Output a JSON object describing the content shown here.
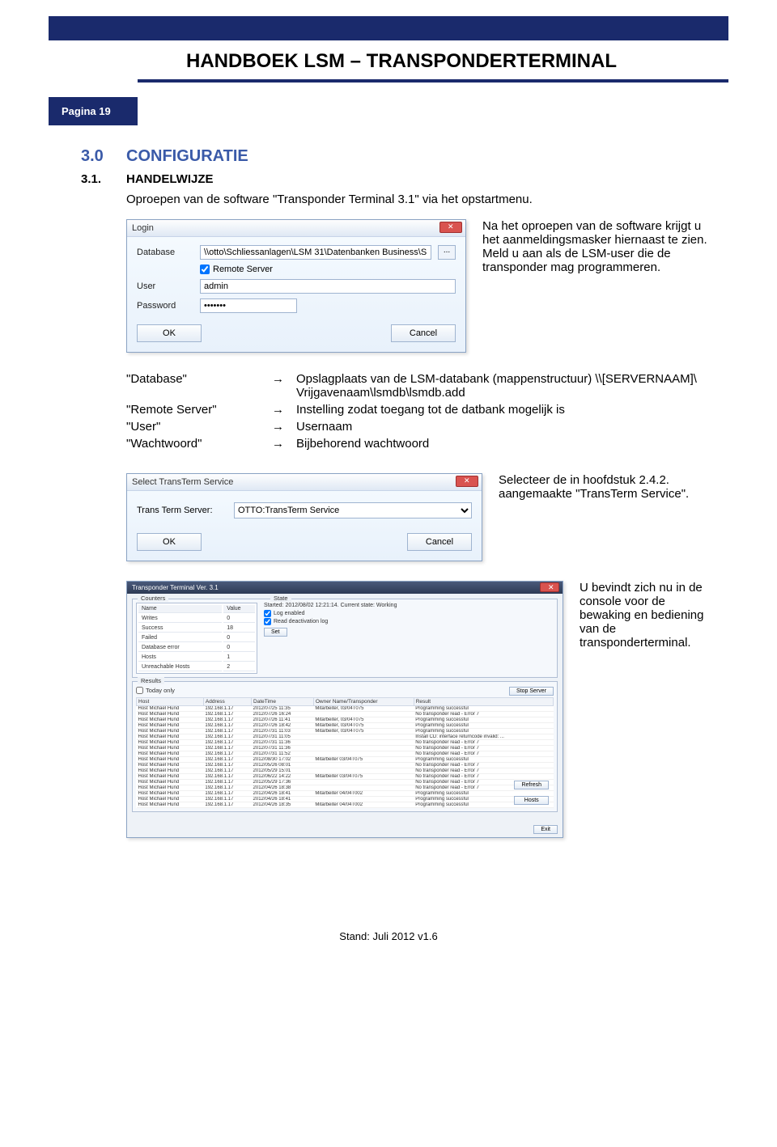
{
  "header": {
    "title": "HANDBOEK LSM – TRANSPONDERTERMINAL",
    "page_label": "Pagina 19"
  },
  "section": {
    "num": "3.0",
    "title": "CONFIGURATIE",
    "sub_num": "3.1.",
    "sub_title": "HANDELWIJZE",
    "intro": "Oproepen van de software \"Transponder Terminal 3.1\" via het opstartmenu.",
    "login_note": "Na het oproepen van de software krijgt u het aanmeldingsmasker hiernaast te zien. Meld u aan als de LSM-user die de transponder mag programmeren."
  },
  "login_dialog": {
    "title": "Login",
    "labels": {
      "database": "Database",
      "user": "User",
      "password": "Password"
    },
    "database_value": "\\\\otto\\Schliessanlagen\\LSM 31\\Datenbanken Business\\S",
    "browse": "...",
    "remote_server": "Remote Server",
    "user_value": "admin",
    "password_value": "•••••••",
    "ok": "OK",
    "cancel": "Cancel"
  },
  "mapping": {
    "rows": [
      {
        "key": "\"Database\"",
        "val": "Opslagplaats van de LSM-databank (mappenstructuur) \\\\[SERVERNAAM]\\ Vrijgavenaam\\lsmdb\\lsmdb.add"
      },
      {
        "key": "\"Remote Server\"",
        "val": "Instelling zodat toegang tot de datbank mogelijk is"
      },
      {
        "key": "\"User\"",
        "val": "Usernaam"
      },
      {
        "key": "\"Wachtwoord\"",
        "val": "Bijbehorend wachtwoord"
      }
    ],
    "arrow": "→"
  },
  "service_dialog": {
    "title": "Select TransTerm Service",
    "label": "Trans Term Server:",
    "value": "OTTO:TransTerm Service",
    "ok": "OK",
    "cancel": "Cancel",
    "note": "Selecteer de in hoofdstuk 2.4.2. aangemaakte \"TransTerm Service\"."
  },
  "console": {
    "title": "Transponder Terminal Ver. 3.1",
    "counters_title": "Counters",
    "state_title": "State",
    "results_title": "Results",
    "counter_cols": [
      "Name",
      "Value"
    ],
    "counters": [
      [
        "Writes",
        "0"
      ],
      [
        "Success",
        "18"
      ],
      [
        "Failed",
        "0"
      ],
      [
        "Database error",
        "0"
      ],
      [
        "Hosts",
        "1"
      ],
      [
        "Unreachable Hosts",
        "2"
      ]
    ],
    "started": "Started: 2012/08/02 12:21:14. Current state: Working",
    "log_enabled": "Log enabled",
    "read_deactivation": "Read deactivation log",
    "set_btn": "Set",
    "today_only": "Today only",
    "stop_server": "Stop Server",
    "refresh": "Refresh",
    "hosts": "Hosts",
    "exit": "Exit",
    "result_cols": [
      "Host",
      "Address",
      "DateTime",
      "Owner Name/Transponder",
      "Result"
    ],
    "results": [
      [
        "Host Michael Hund",
        "192.168.1.17",
        "2012/07/25 11:35",
        "Mitarbeiter, 03/04T075",
        "Programming successful"
      ],
      [
        "Host Michael Hund",
        "192.168.1.17",
        "2012/07/26 16:24",
        "",
        "No transponder read - Error 7"
      ],
      [
        "Host Michael Hund",
        "192.168.1.17",
        "2012/07/26 11:41",
        "Mitarbeiter, 03/04T075",
        "Programming successful"
      ],
      [
        "Host Michael Hund",
        "192.168.1.17",
        "2012/07/26 18:42",
        "Mitarbeiter, 03/04T075",
        "Programming successful"
      ],
      [
        "Host Michael Hund",
        "192.168.1.17",
        "2012/07/31 11:03",
        "Mitarbeiter, 03/04T075",
        "Programming successful"
      ],
      [
        "Host Michael Hund",
        "192.168.1.17",
        "2012/07/31 11:05",
        "",
        "Install CD: interface returncode invalid: ..."
      ],
      [
        "Host Michael Hund",
        "192.168.1.17",
        "2012/07/31 11:36",
        "",
        "No transponder read - Error 7"
      ],
      [
        "Host Michael Hund",
        "192.168.1.17",
        "2012/07/31 11:36",
        "",
        "No transponder read - Error 7"
      ],
      [
        "Host Michael Hund",
        "192.168.1.17",
        "2012/07/31 11:52",
        "",
        "No transponder read - Error 7"
      ],
      [
        "Host Michael Hund",
        "192.168.1.17",
        "2012/08/30 17:02",
        "Mitarbeiter 03/04T075",
        "Programming successful"
      ],
      [
        "Host Michael Hund",
        "192.168.1.17",
        "2012/05/26 08:01",
        "",
        "No transponder read - Error 7"
      ],
      [
        "Host Michael Hund",
        "192.168.1.17",
        "2012/05/29 15:01",
        "",
        "No transponder read - Error 7"
      ],
      [
        "Host Michael Hund",
        "192.168.1.17",
        "2012/06/22 14:22",
        "Mitarbeiter 03/04T075",
        "No transponder read - Error 7"
      ],
      [
        "Host Michael Hund",
        "192.168.1.17",
        "2012/05/29 17:36",
        "",
        "No transponder read - Error 7"
      ],
      [
        "Host Michael Hund",
        "192.168.1.17",
        "2012/04/26 18:38",
        "",
        "No transponder read - Error 7"
      ],
      [
        "Host Michael Hund",
        "192.168.1.17",
        "2012/04/26 18:41",
        "Mitarbeiter 04/04T002",
        "Programming successful"
      ],
      [
        "Host Michael Hund",
        "192.168.1.17",
        "2012/04/26 18:41",
        "",
        "Programming successful"
      ],
      [
        "Host Michael Hund",
        "192.168.1.17",
        "2012/04/26 18:35",
        "Mitarbeiter 04/04T002",
        "Programming successful"
      ]
    ],
    "note": "U bevindt zich nu in de console voor de bewaking en bediening van de transponderterminal."
  },
  "footer": "Stand: Juli 2012 v1.6",
  "colors": {
    "brand": "#1a2a6c",
    "heading": "#3a5aa8",
    "dialog_border": "#8aa3c4"
  }
}
